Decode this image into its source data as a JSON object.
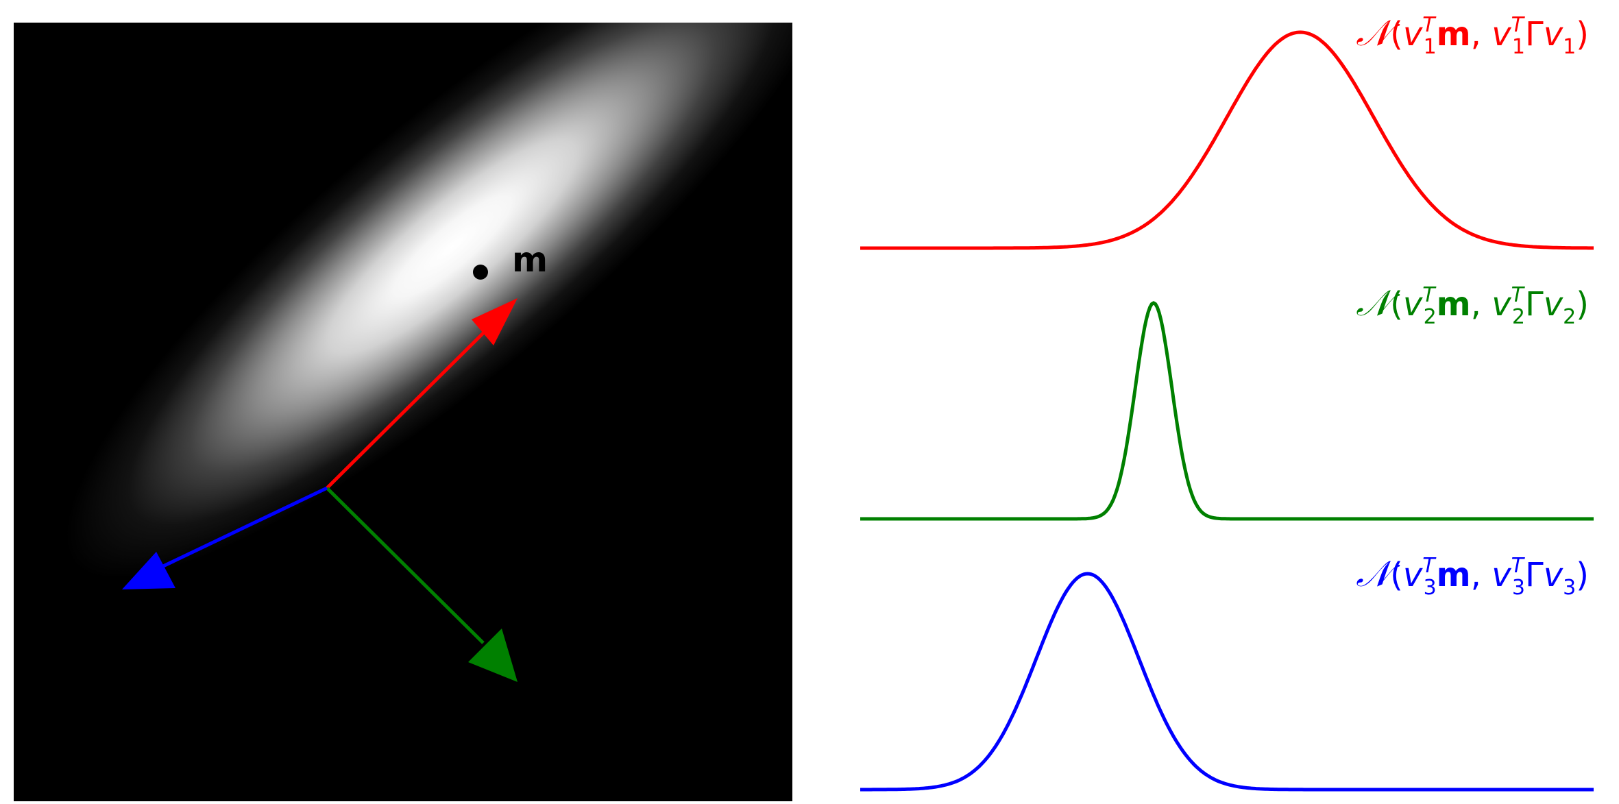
{
  "heatmap_panel": {
    "mean_label": "m",
    "arrows": [
      {
        "name": "v1",
        "color": "#ff0000"
      },
      {
        "name": "v2",
        "color": "#008000"
      },
      {
        "name": "v3",
        "color": "#0000ff"
      }
    ]
  },
  "projections": [
    {
      "name": "projection-1",
      "color": "#ff0000",
      "calN": "𝒩",
      "open": "(",
      "v": "v",
      "sub": "1",
      "sup": "T",
      "m": "m",
      "comma": ", ",
      "gamma": "Γ",
      "close": ")",
      "peak_position": 0.6,
      "relative_width": 0.1
    },
    {
      "name": "projection-2",
      "color": "#008000",
      "calN": "𝒩",
      "open": "(",
      "v": "v",
      "sub": "2",
      "sup": "T",
      "m": "m",
      "comma": ", ",
      "gamma": "Γ",
      "close": ")",
      "peak_position": 0.4,
      "relative_width": 0.025
    },
    {
      "name": "projection-3",
      "color": "#0000ff",
      "calN": "𝒩",
      "open": "(",
      "v": "v",
      "sub": "3",
      "sup": "T",
      "m": "m",
      "comma": ", ",
      "gamma": "Γ",
      "close": ")",
      "peak_position": 0.31,
      "relative_width": 0.07
    }
  ]
}
